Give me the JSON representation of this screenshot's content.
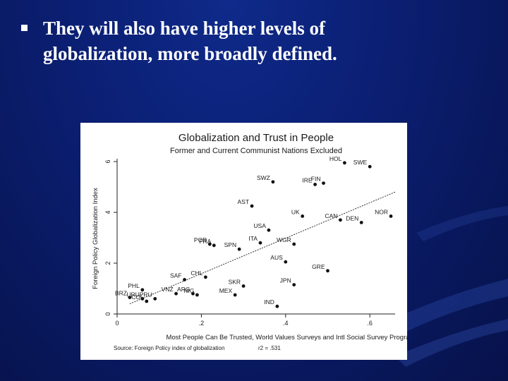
{
  "slide": {
    "bullet_text": "They will also have higher levels of globalization, more broadly defined."
  },
  "chart_data": {
    "type": "scatter",
    "title": "Globalization and Trust in People",
    "subtitle": "Former and Current Communist Nations Excluded",
    "xlabel": "Most People Can Be Trusted, World Values Surveys and Intl Social Survey Program",
    "ylabel": "Foreign Policy Globalization Index",
    "xlim": [
      0,
      0.66
    ],
    "ylim": [
      0,
      6
    ],
    "x_ticks": [
      {
        "value": 0,
        "label": "0"
      },
      {
        "value": 0.2,
        "label": ".2"
      },
      {
        "value": 0.4,
        "label": ".4"
      },
      {
        "value": 0.6,
        "label": ".6"
      }
    ],
    "y_ticks": [
      {
        "value": 0,
        "label": "0"
      },
      {
        "value": 2,
        "label": "2"
      },
      {
        "value": 4,
        "label": "4"
      },
      {
        "value": 6,
        "label": "6"
      }
    ],
    "source": "Source: Foreign Policy index of globalization",
    "r2_label": "r2 = .531",
    "fit_line": {
      "x": [
        0.03,
        0.66
      ],
      "y": [
        0.4,
        4.8
      ]
    },
    "points": [
      {
        "label": "HOL",
        "x": 0.54,
        "y": 5.95
      },
      {
        "label": "SWE",
        "x": 0.6,
        "y": 5.8
      },
      {
        "label": "SWZ",
        "x": 0.37,
        "y": 5.2
      },
      {
        "label": "IRE",
        "x": 0.47,
        "y": 5.1
      },
      {
        "label": "FIN",
        "x": 0.49,
        "y": 5.15
      },
      {
        "label": "AST",
        "x": 0.32,
        "y": 4.25
      },
      {
        "label": "UK",
        "x": 0.44,
        "y": 3.85
      },
      {
        "label": "NOR",
        "x": 0.65,
        "y": 3.85
      },
      {
        "label": "CAN",
        "x": 0.53,
        "y": 3.7
      },
      {
        "label": "DEN",
        "x": 0.58,
        "y": 3.6
      },
      {
        "label": "USA",
        "x": 0.36,
        "y": 3.3
      },
      {
        "label": "POR",
        "x": 0.22,
        "y": 2.75
      },
      {
        "label": "ITA",
        "x": 0.34,
        "y": 2.8
      },
      {
        "label": "WGR",
        "x": 0.42,
        "y": 2.75
      },
      {
        "label": "SPN",
        "x": 0.29,
        "y": 2.55
      },
      {
        "label": "FRA",
        "x": 0.23,
        "y": 2.7
      },
      {
        "label": "AUS",
        "x": 0.4,
        "y": 2.05
      },
      {
        "label": "GRE",
        "x": 0.5,
        "y": 1.7
      },
      {
        "label": "CHL",
        "x": 0.21,
        "y": 1.45
      },
      {
        "label": "SAF",
        "x": 0.16,
        "y": 1.35
      },
      {
        "label": "PHL",
        "x": 0.06,
        "y": 0.95
      },
      {
        "label": "ARG",
        "x": 0.18,
        "y": 0.8
      },
      {
        "label": "SKR",
        "x": 0.3,
        "y": 1.1
      },
      {
        "label": "JPN",
        "x": 0.42,
        "y": 1.15
      },
      {
        "label": "VNZ",
        "x": 0.14,
        "y": 0.8
      },
      {
        "label": "MEX",
        "x": 0.28,
        "y": 0.75
      },
      {
        "label": "BRZ",
        "x": 0.03,
        "y": 0.65
      },
      {
        "label": "URU",
        "x": 0.06,
        "y": 0.6
      },
      {
        "label": "PRU",
        "x": 0.09,
        "y": 0.6
      },
      {
        "label": "COL",
        "x": 0.07,
        "y": 0.5
      },
      {
        "label": "NIG",
        "x": 0.19,
        "y": 0.75
      },
      {
        "label": "IND",
        "x": 0.38,
        "y": 0.3
      }
    ]
  }
}
